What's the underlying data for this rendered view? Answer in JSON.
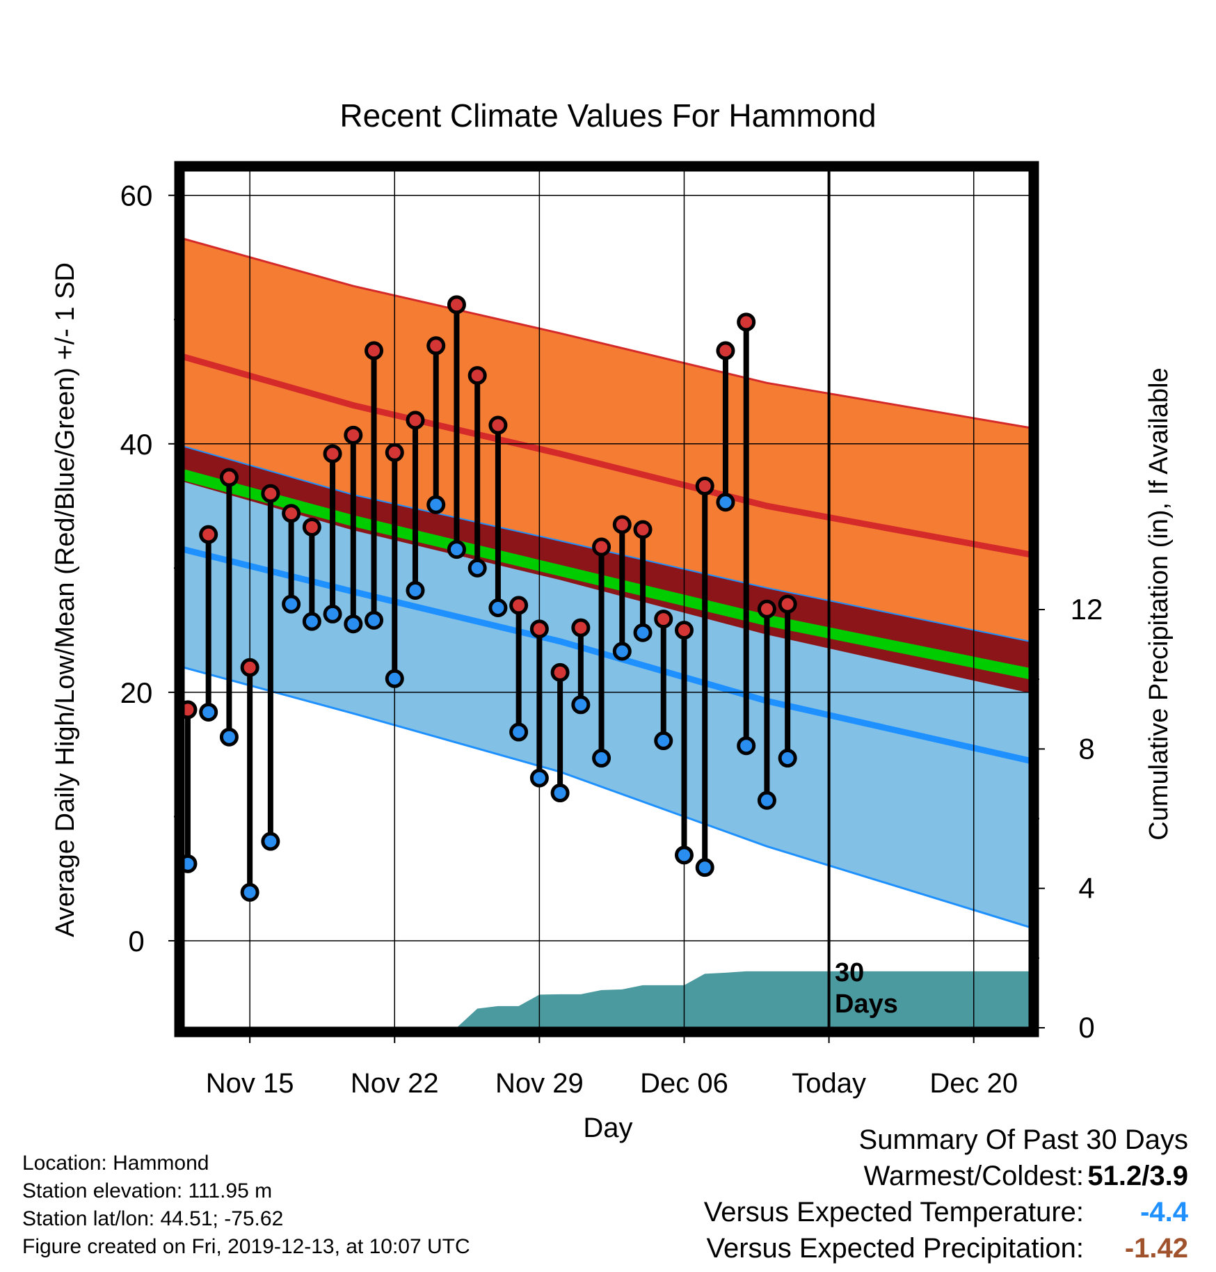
{
  "chart_data": {
    "type": "line",
    "title": "Recent Climate Values For Hammond",
    "xlabel": "Day",
    "ylabel": "Average Daily High/Low/Mean (Red/Blue/Green) +/- 1 SD",
    "y2label": "Cumulative Precipitation (in), If Available",
    "ylim": [
      -7,
      62
    ],
    "y2lim": [
      0,
      24.6
    ],
    "yticks": [
      "60",
      "40",
      "20",
      "0"
    ],
    "y2ticks": [
      "12",
      "8",
      "4",
      "0"
    ],
    "x_tick_labels": [
      "Nov 15",
      "Nov 22",
      "Nov 29",
      "Dec 06",
      "Today",
      "Dec 20"
    ],
    "x_tick_days": [
      15,
      22,
      29,
      36,
      43,
      50
    ],
    "xlim": [
      11.8,
      52.7
    ],
    "grid": true,
    "today_label": "30\nDays",
    "colors": {
      "high_band": "#f57c33",
      "high_line": "#d42a2a",
      "overlap_band": "#8b1519",
      "mean_line": "#00cc00",
      "low_band": "#82c0e6",
      "low_line": "#1e90ff",
      "precip": "#4a9aa0",
      "high_dot": "#d43535",
      "low_dot": "#2a8ef0"
    },
    "climatology": {
      "days": [
        11.8,
        20,
        30,
        40,
        52.7
      ],
      "high_upper": [
        56.5,
        52.7,
        48.9,
        44.9,
        41.3
      ],
      "high_mean": [
        47.0,
        43.1,
        39.2,
        35.0,
        31.1
      ],
      "high_lower": [
        39.8,
        35.9,
        32.2,
        28.4,
        24.1
      ],
      "mean": [
        37.5,
        33.8,
        29.8,
        25.8,
        21.5
      ],
      "low_upper": [
        37.0,
        33.1,
        29.1,
        24.7,
        20.0
      ],
      "low_mean": [
        31.5,
        28.1,
        24.1,
        19.3,
        14.5
      ],
      "low_lower": [
        22.0,
        18.3,
        13.6,
        7.6,
        1.1
      ]
    },
    "observed": {
      "days": [
        12,
        13,
        14,
        15,
        16,
        17,
        18,
        19,
        20,
        21,
        22,
        23,
        24,
        25,
        26,
        27,
        28,
        29,
        30,
        31,
        32,
        33,
        34,
        35,
        36,
        37,
        38,
        39,
        40,
        41,
        42
      ],
      "high": [
        18.6,
        32.7,
        37.3,
        22.0,
        36.0,
        34.4,
        33.3,
        39.2,
        40.7,
        47.5,
        39.3,
        41.9,
        47.9,
        51.2,
        45.5,
        41.5,
        27.0,
        25.1,
        21.6,
        25.2,
        31.7,
        33.5,
        33.1,
        25.9,
        25.0,
        36.6,
        47.5,
        49.8,
        26.7,
        27.1,
        null
      ],
      "low": [
        6.2,
        18.4,
        16.4,
        3.9,
        8.0,
        27.1,
        25.7,
        26.3,
        25.5,
        25.8,
        21.1,
        28.2,
        35.1,
        31.5,
        30.0,
        26.8,
        16.8,
        13.1,
        11.9,
        19.0,
        14.7,
        23.3,
        24.8,
        16.1,
        6.9,
        5.9,
        35.3,
        15.7,
        11.3,
        14.7,
        null
      ]
    },
    "precipitation": {
      "days": [
        25.0,
        26.0,
        27.0,
        28.0,
        29.0,
        30.0,
        31.0,
        32.0,
        33.0,
        34.0,
        35.0,
        36.0,
        37.0,
        38.0,
        39.0,
        40.0,
        43.0,
        52.7
      ],
      "values": [
        0.0,
        0.55,
        0.62,
        0.62,
        0.95,
        0.96,
        0.96,
        1.08,
        1.1,
        1.22,
        1.22,
        1.22,
        1.55,
        1.58,
        1.62,
        1.62,
        1.62,
        1.62
      ]
    }
  },
  "footer": {
    "location": "Location: Hammond",
    "elevation": "Station elevation: 111.95 m",
    "latlon": "Station lat/lon: 44.51; -75.62",
    "created": "Figure created on Fri, 2019-12-13, at 10:07 UTC"
  },
  "summary": {
    "heading": "Summary Of Past 30 Days",
    "warmest_label": "Warmest/Coldest:",
    "warmest_value": "51.2/3.9",
    "temp_label": "Versus Expected Temperature:",
    "temp_value": "-4.4",
    "temp_color": "#1e90ff",
    "precip_label": "Versus Expected Precipitation:",
    "precip_value": "-1.42",
    "precip_color": "#a0522d"
  }
}
